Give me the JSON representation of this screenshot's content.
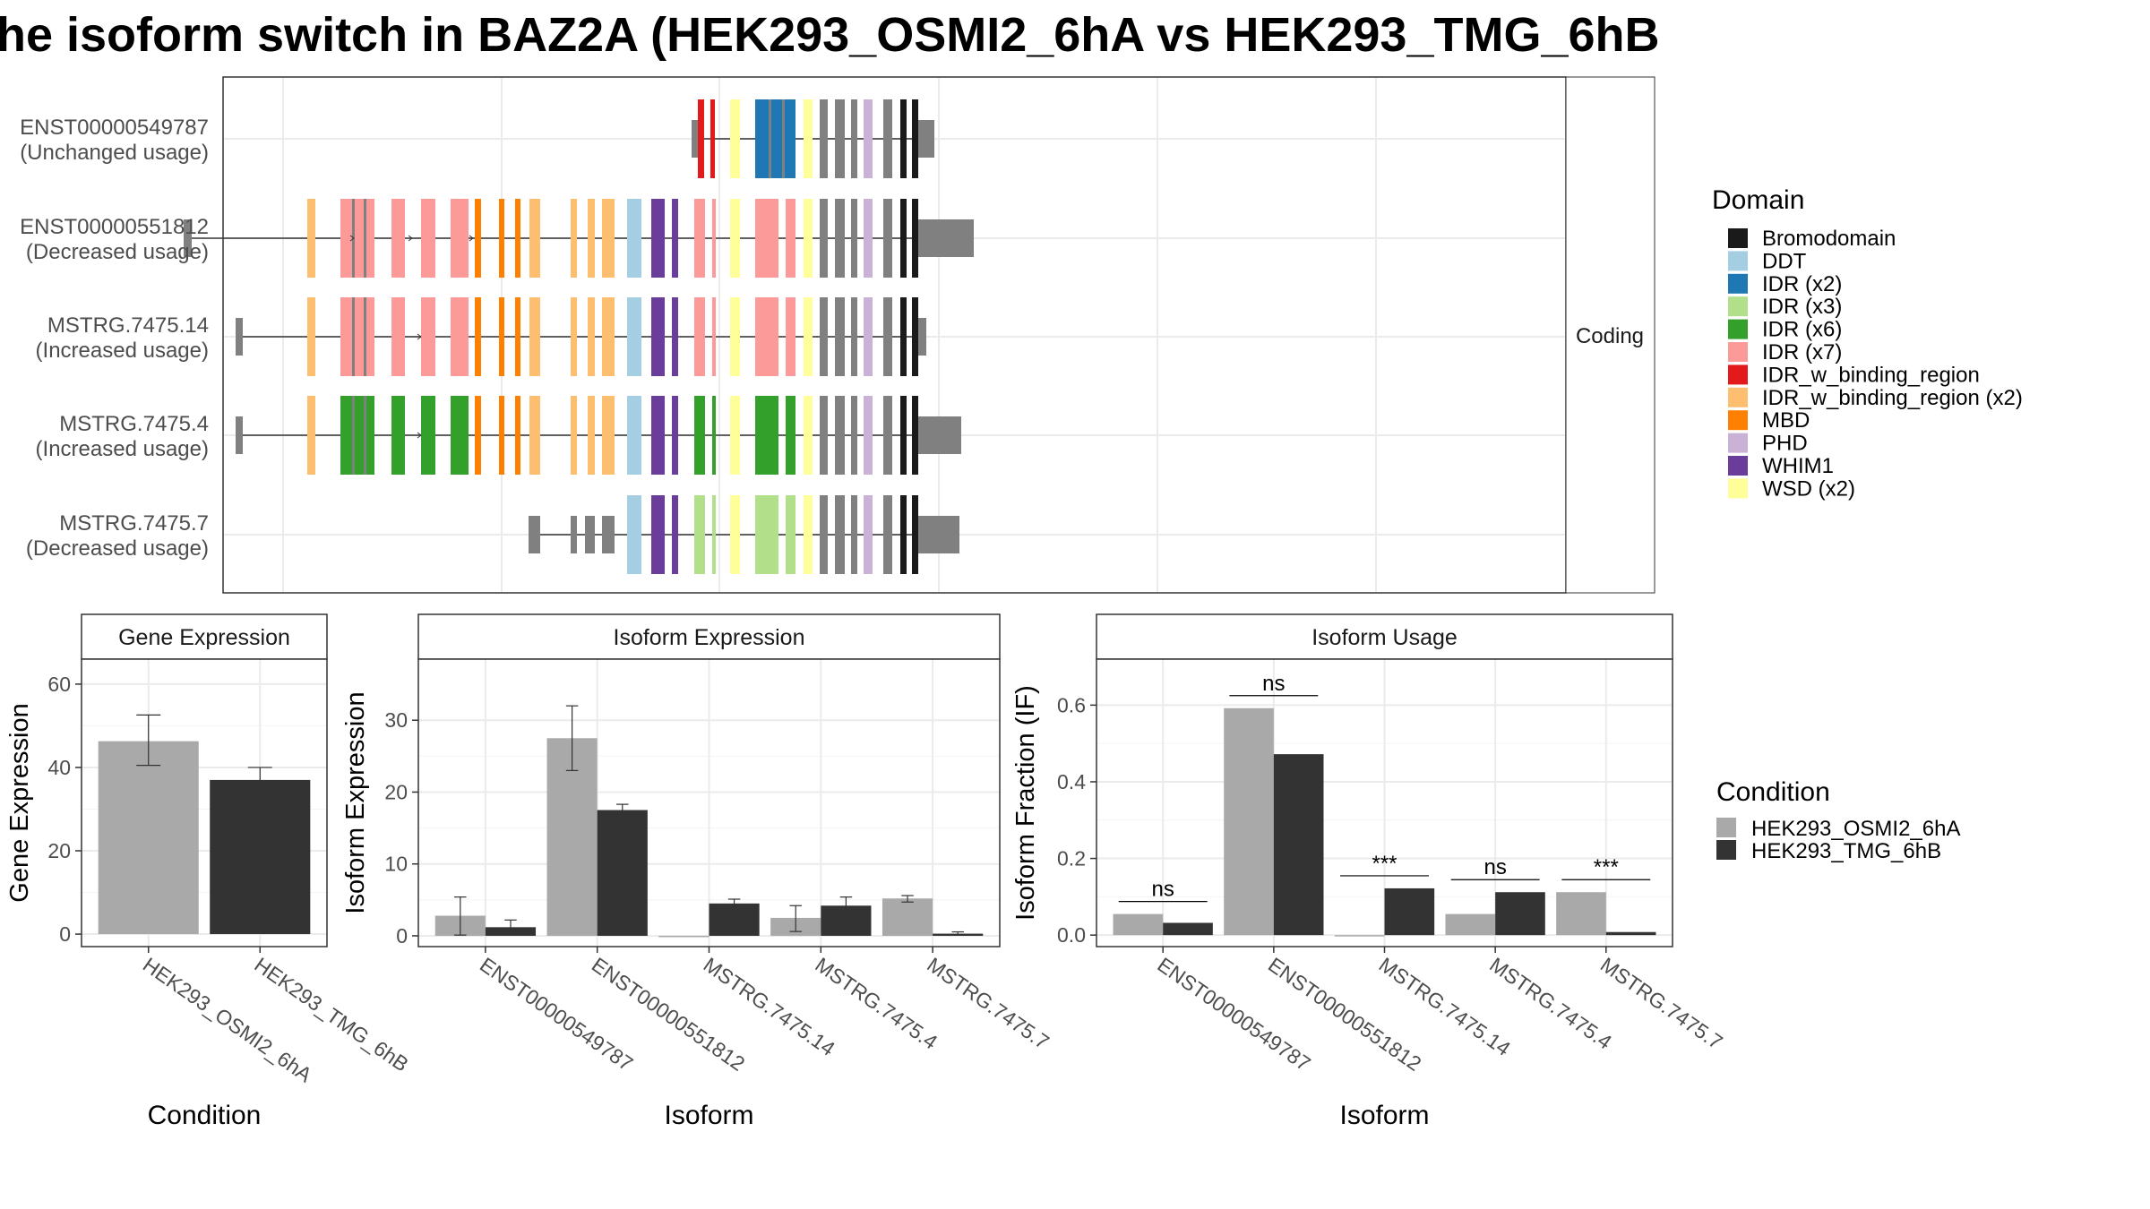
{
  "title": "he isoform switch in BAZ2A (HEK293_OSMI2_6hA vs HEK293_TMG_6hB",
  "colors": {
    "cond_a": "#A9A9A9",
    "cond_b": "#333333",
    "utr": "#808080",
    "grid": "#EBEBEB",
    "panel_border": "#333333"
  },
  "structure": {
    "facet_label": "Coding",
    "domains": [
      {
        "name": "Bromodomain",
        "color": "#1A1A1A"
      },
      {
        "name": "DDT",
        "color": "#A6CEE3"
      },
      {
        "name": "IDR (x2)",
        "color": "#1F78B4"
      },
      {
        "name": "IDR (x3)",
        "color": "#B2DF8A"
      },
      {
        "name": "IDR (x6)",
        "color": "#33A02C"
      },
      {
        "name": "IDR (x7)",
        "color": "#FB9A99"
      },
      {
        "name": "IDR_w_binding_region",
        "color": "#E31A1C"
      },
      {
        "name": "IDR_w_binding_region (x2)",
        "color": "#FDBF6F"
      },
      {
        "name": "MBD",
        "color": "#FF7F00"
      },
      {
        "name": "PHD",
        "color": "#CAB2D6"
      },
      {
        "name": "WHIM1",
        "color": "#6A3D9A"
      },
      {
        "name": "WSD (x2)",
        "color": "#FFFF99"
      }
    ],
    "transcripts": [
      {
        "id": "ENST00000549787",
        "usage": "(Unchanged usage)",
        "start": 772,
        "end": 1043,
        "exons": [
          [
            772,
            779,
            "utr"
          ],
          [
            779,
            786,
            "IDR_w_binding_region"
          ],
          [
            793,
            798,
            "IDR_w_binding_region"
          ],
          [
            815,
            826,
            "WSD (x2)"
          ],
          [
            843,
            888,
            "IDR (x2)"
          ],
          [
            897,
            907,
            "WSD (x2)"
          ],
          [
            915,
            924,
            "cds"
          ],
          [
            932,
            943,
            "cds"
          ],
          [
            950,
            957,
            "cds"
          ],
          [
            964,
            974,
            "PHD"
          ],
          [
            986,
            996,
            "cds"
          ],
          [
            1005,
            1012,
            "Bromodomain"
          ],
          [
            1018,
            1025,
            "Bromodomain"
          ],
          [
            1025,
            1043,
            "utr"
          ]
        ]
      },
      {
        "id": "ENST00000551812",
        "usage": "(Decreased usage)",
        "start": 205,
        "end": 1087,
        "exons": [
          [
            205,
            214,
            "utr"
          ],
          [
            343,
            352,
            "IDR_w_binding_region (x2)"
          ],
          [
            380,
            418,
            "IDR (x7)"
          ],
          [
            437,
            452,
            "IDR (x7)"
          ],
          [
            470,
            486,
            "IDR (x7)"
          ],
          [
            503,
            523,
            "IDR (x7)"
          ],
          [
            530,
            537,
            "MBD"
          ],
          [
            557,
            563,
            "MBD"
          ],
          [
            575,
            581,
            "MBD"
          ],
          [
            591,
            603,
            "IDR_w_binding_region (x2)"
          ],
          [
            637,
            644,
            "IDR_w_binding_region (x2)"
          ],
          [
            656,
            664,
            "IDR_w_binding_region (x2)"
          ],
          [
            672,
            686,
            "IDR_w_binding_region (x2)"
          ],
          [
            700,
            716,
            "DDT"
          ],
          [
            727,
            742,
            "WHIM1"
          ],
          [
            750,
            757,
            "WHIM1"
          ],
          [
            775,
            787,
            "IDR (x7)"
          ],
          [
            795,
            799,
            "IDR (x7)"
          ],
          [
            815,
            826,
            "WSD (x2)"
          ],
          [
            843,
            869,
            "IDR (x7)"
          ],
          [
            877,
            888,
            "IDR (x7)"
          ],
          [
            897,
            907,
            "WSD (x2)"
          ],
          [
            915,
            924,
            "cds"
          ],
          [
            932,
            943,
            "cds"
          ],
          [
            950,
            957,
            "cds"
          ],
          [
            964,
            974,
            "PHD"
          ],
          [
            986,
            996,
            "cds"
          ],
          [
            1005,
            1012,
            "Bromodomain"
          ],
          [
            1018,
            1025,
            "Bromodomain"
          ],
          [
            1025,
            1087,
            "utr"
          ]
        ]
      },
      {
        "id": "MSTRG.7475.14",
        "usage": "(Increased usage)",
        "start": 263,
        "end": 1034,
        "exons": [
          [
            263,
            271,
            "utr"
          ],
          [
            343,
            352,
            "IDR_w_binding_region (x2)"
          ],
          [
            380,
            418,
            "IDR (x7)"
          ],
          [
            437,
            452,
            "IDR (x7)"
          ],
          [
            470,
            486,
            "IDR (x7)"
          ],
          [
            503,
            523,
            "IDR (x7)"
          ],
          [
            530,
            537,
            "MBD"
          ],
          [
            557,
            563,
            "MBD"
          ],
          [
            575,
            581,
            "MBD"
          ],
          [
            591,
            603,
            "IDR_w_binding_region (x2)"
          ],
          [
            637,
            644,
            "IDR_w_binding_region (x2)"
          ],
          [
            656,
            664,
            "IDR_w_binding_region (x2)"
          ],
          [
            672,
            686,
            "IDR_w_binding_region (x2)"
          ],
          [
            700,
            716,
            "DDT"
          ],
          [
            727,
            742,
            "WHIM1"
          ],
          [
            750,
            757,
            "WHIM1"
          ],
          [
            775,
            787,
            "IDR (x7)"
          ],
          [
            795,
            799,
            "IDR (x7)"
          ],
          [
            815,
            826,
            "WSD (x2)"
          ],
          [
            843,
            869,
            "IDR (x7)"
          ],
          [
            877,
            888,
            "IDR (x7)"
          ],
          [
            897,
            907,
            "WSD (x2)"
          ],
          [
            915,
            924,
            "cds"
          ],
          [
            932,
            943,
            "cds"
          ],
          [
            950,
            957,
            "cds"
          ],
          [
            964,
            974,
            "PHD"
          ],
          [
            986,
            996,
            "cds"
          ],
          [
            1005,
            1012,
            "Bromodomain"
          ],
          [
            1018,
            1025,
            "Bromodomain"
          ],
          [
            1025,
            1034,
            "utr"
          ]
        ]
      },
      {
        "id": "MSTRG.7475.4",
        "usage": "(Increased usage)",
        "start": 263,
        "end": 1073,
        "exons": [
          [
            263,
            271,
            "utr"
          ],
          [
            343,
            352,
            "IDR_w_binding_region (x2)"
          ],
          [
            380,
            418,
            "IDR (x6)"
          ],
          [
            437,
            452,
            "IDR (x6)"
          ],
          [
            470,
            486,
            "IDR (x6)"
          ],
          [
            503,
            523,
            "IDR (x6)"
          ],
          [
            530,
            537,
            "MBD"
          ],
          [
            557,
            563,
            "MBD"
          ],
          [
            575,
            581,
            "MBD"
          ],
          [
            591,
            603,
            "IDR_w_binding_region (x2)"
          ],
          [
            637,
            644,
            "IDR_w_binding_region (x2)"
          ],
          [
            656,
            664,
            "IDR_w_binding_region (x2)"
          ],
          [
            672,
            686,
            "IDR_w_binding_region (x2)"
          ],
          [
            700,
            716,
            "DDT"
          ],
          [
            727,
            742,
            "WHIM1"
          ],
          [
            750,
            757,
            "WHIM1"
          ],
          [
            775,
            787,
            "IDR (x6)"
          ],
          [
            795,
            799,
            "IDR (x6)"
          ],
          [
            815,
            826,
            "WSD (x2)"
          ],
          [
            843,
            869,
            "IDR (x6)"
          ],
          [
            877,
            888,
            "IDR (x6)"
          ],
          [
            897,
            907,
            "WSD (x2)"
          ],
          [
            915,
            924,
            "cds"
          ],
          [
            932,
            943,
            "cds"
          ],
          [
            950,
            957,
            "cds"
          ],
          [
            964,
            974,
            "PHD"
          ],
          [
            986,
            996,
            "cds"
          ],
          [
            1005,
            1012,
            "Bromodomain"
          ],
          [
            1018,
            1025,
            "Bromodomain"
          ],
          [
            1025,
            1073,
            "utr"
          ]
        ]
      },
      {
        "id": "MSTRG.7475.7",
        "usage": "(Decreased usage)",
        "start": 590,
        "end": 1071,
        "exons": [
          [
            590,
            603,
            "utr"
          ],
          [
            637,
            644,
            "utr"
          ],
          [
            653,
            664,
            "utr"
          ],
          [
            672,
            686,
            "utr"
          ],
          [
            700,
            716,
            "DDT"
          ],
          [
            727,
            742,
            "WHIM1"
          ],
          [
            750,
            757,
            "WHIM1"
          ],
          [
            775,
            787,
            "IDR (x3)"
          ],
          [
            795,
            799,
            "IDR (x3)"
          ],
          [
            815,
            826,
            "WSD (x2)"
          ],
          [
            843,
            869,
            "IDR (x3)"
          ],
          [
            877,
            888,
            "IDR (x3)"
          ],
          [
            897,
            907,
            "WSD (x2)"
          ],
          [
            915,
            924,
            "cds"
          ],
          [
            932,
            943,
            "cds"
          ],
          [
            950,
            957,
            "cds"
          ],
          [
            964,
            974,
            "PHD"
          ],
          [
            986,
            996,
            "cds"
          ],
          [
            1005,
            1012,
            "Bromodomain"
          ],
          [
            1018,
            1025,
            "Bromodomain"
          ],
          [
            1025,
            1071,
            "utr"
          ]
        ]
      }
    ]
  },
  "legend_domain_title": "Domain",
  "legend_condition_title": "Condition",
  "conditions": [
    "HEK293_OSMI2_6hA",
    "HEK293_TMG_6hB"
  ],
  "chart_data": [
    {
      "type": "bar",
      "title": "Gene Expression",
      "xlabel": "Condition",
      "ylabel": "Gene Expression",
      "categories": [
        "HEK293_OSMI2_6hA",
        "HEK293_TMG_6hB"
      ],
      "values": [
        46.3,
        37.0
      ],
      "error_low": [
        40.5,
        34.0
      ],
      "error_high": [
        52.6,
        40.0
      ],
      "ylim": [
        -3,
        66
      ],
      "yticks": [
        0,
        20,
        40,
        60
      ]
    },
    {
      "type": "bar",
      "title": "Isoform Expression",
      "xlabel": "Isoform",
      "ylabel": "Isoform Expression",
      "categories": [
        "ENST00000549787",
        "ENST00000551812",
        "MSTRG.7475.14",
        "MSTRG.7475.4",
        "MSTRG.7475.7"
      ],
      "series": [
        {
          "name": "HEK293_OSMI2_6hA",
          "values": [
            2.8,
            27.5,
            0.0,
            2.5,
            5.2
          ],
          "error_low": [
            0.1,
            23.0,
            null,
            0.6,
            4.7
          ],
          "error_high": [
            5.4,
            32.0,
            null,
            4.2,
            5.6
          ]
        },
        {
          "name": "HEK293_TMG_6hB",
          "values": [
            1.2,
            17.5,
            4.5,
            4.2,
            0.3
          ],
          "error_low": [
            0.3,
            16.7,
            4.0,
            3.1,
            0.15
          ],
          "error_high": [
            2.2,
            18.3,
            5.1,
            5.4,
            0.55
          ]
        }
      ],
      "ylim": [
        -1.5,
        38.5
      ],
      "yticks": [
        0,
        10,
        20,
        30
      ]
    },
    {
      "type": "bar",
      "title": "Isoform Usage",
      "xlabel": "Isoform",
      "ylabel": "Isoform Fraction (IF)",
      "categories": [
        "ENST00000549787",
        "ENST00000551812",
        "MSTRG.7475.14",
        "MSTRG.7475.4",
        "MSTRG.7475.7"
      ],
      "series": [
        {
          "name": "HEK293_OSMI2_6hA",
          "values": [
            0.055,
            0.592,
            0.0,
            0.055,
            0.112
          ]
        },
        {
          "name": "HEK293_TMG_6hB",
          "values": [
            0.032,
            0.472,
            0.122,
            0.112,
            0.008
          ]
        }
      ],
      "significance": [
        "ns",
        "ns",
        "***",
        "ns",
        "***"
      ],
      "ylim": [
        -0.03,
        0.72
      ],
      "yticks": [
        0.0,
        0.2,
        0.4,
        0.6
      ]
    }
  ]
}
